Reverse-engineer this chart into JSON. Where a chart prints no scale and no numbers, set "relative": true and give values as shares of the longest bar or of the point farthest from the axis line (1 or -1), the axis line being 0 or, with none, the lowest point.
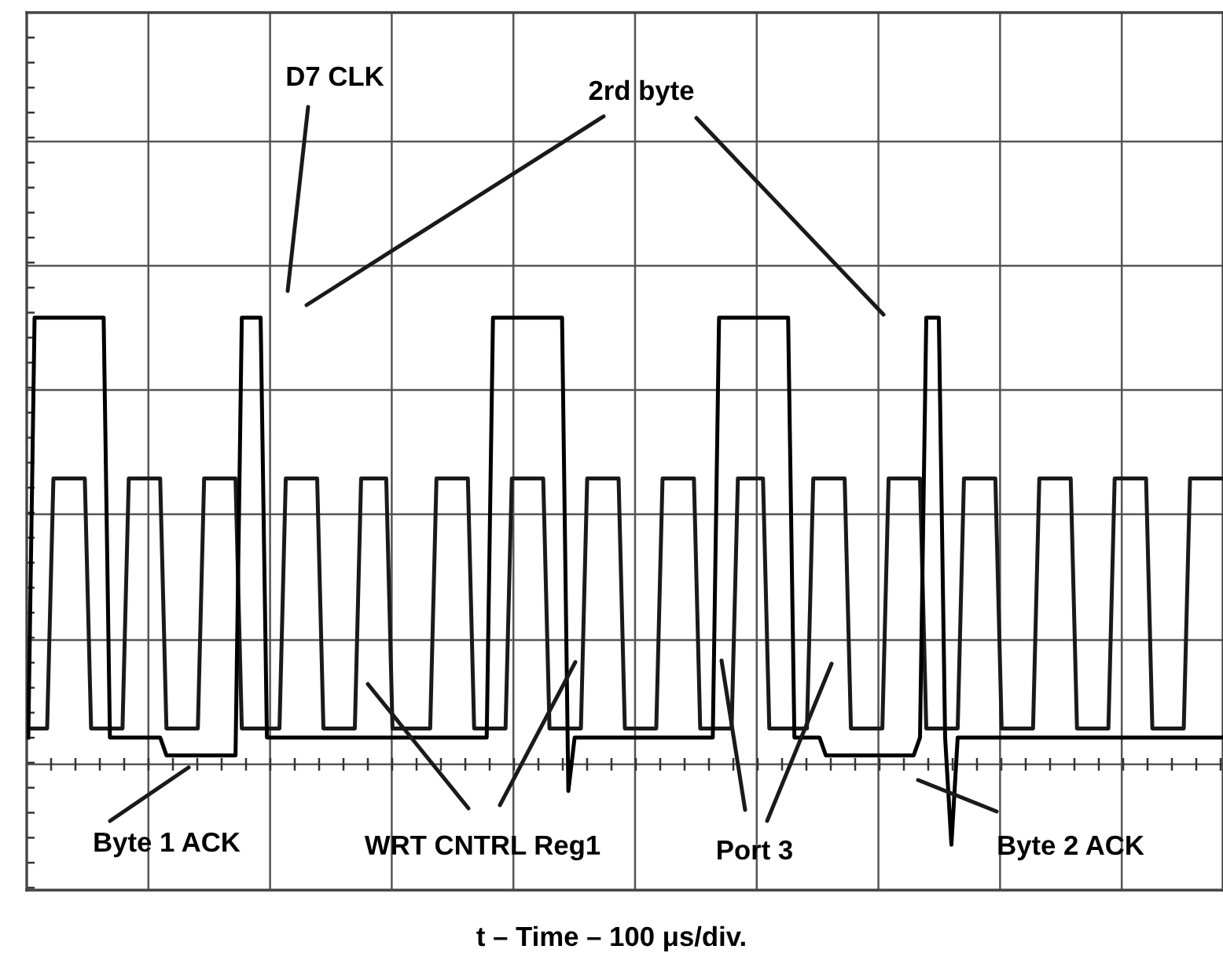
{
  "chart_data": {
    "type": "line",
    "relative": true,
    "grid": true,
    "marker": "none",
    "line_style": "solid",
    "tick_labels": false,
    "xlabel": "t – Time – 100 μs/div.",
    "annotations": [
      "D7 CLK",
      "2rd byte",
      "Byte 1 ACK",
      "WRT CNTRL Reg1",
      "Port 3",
      "Byte 2 ACK"
    ],
    "categories": [
      null,
      null,
      null,
      null,
      null,
      null,
      null,
      null,
      null,
      null,
      null,
      null,
      null,
      null,
      null,
      null,
      null,
      null,
      null,
      null,
      null,
      null,
      null,
      null,
      null,
      null,
      null,
      null,
      null,
      null,
      null,
      null,
      null,
      null,
      null,
      null,
      null,
      null,
      null,
      null,
      null,
      null,
      null,
      null,
      null,
      null,
      null,
      null,
      null,
      null,
      null,
      null,
      null,
      null,
      null,
      null,
      null,
      null,
      null,
      null,
      null,
      null,
      null,
      null,
      null,
      null,
      null,
      null,
      null,
      null,
      null,
      null,
      null,
      null,
      null,
      null,
      null,
      null,
      null,
      null,
      null,
      null,
      null,
      null,
      null,
      null,
      null,
      null,
      null,
      null,
      null,
      null,
      null,
      null,
      null,
      null,
      null,
      null,
      null,
      null,
      null,
      null,
      null,
      null,
      null,
      null,
      null,
      null,
      null,
      null,
      null,
      null,
      null,
      null,
      null,
      null,
      null,
      null,
      null,
      null,
      null,
      null,
      null,
      null,
      null,
      null,
      null,
      null,
      null,
      null,
      null,
      null,
      null,
      null,
      null,
      null,
      null,
      null,
      null,
      null,
      null,
      null,
      null,
      null,
      null,
      null,
      null,
      null,
      null,
      null,
      null,
      null,
      null,
      null,
      null,
      null,
      null,
      null,
      null,
      null,
      null,
      null,
      null,
      null,
      null,
      null,
      null,
      null,
      null,
      null,
      null,
      null,
      null,
      null,
      null,
      null,
      null,
      null,
      null,
      null,
      null,
      null,
      null,
      null,
      null,
      null,
      null,
      null,
      null,
      null,
      null
    ],
    "series": [
      {
        "color": "#1a1a1a",
        "values": [
          0.08,
          0.08,
          0.08,
          0.08,
          0.64,
          0.64,
          0.64,
          0.64,
          0.64,
          0.64,
          0.08,
          0.08,
          0.08,
          0.08,
          0.08,
          0.08,
          0.64,
          0.64,
          0.64,
          0.64,
          0.64,
          0.64,
          0.08,
          0.08,
          0.08,
          0.08,
          0.08,
          0.08,
          0.64,
          0.64,
          0.64,
          0.64,
          0.64,
          0.64,
          0.08,
          0.08,
          0.08,
          0.08,
          0.08,
          0.08,
          0.08,
          0.64,
          0.64,
          0.64,
          0.64,
          0.64,
          0.64,
          0.08,
          0.08,
          0.08,
          0.08,
          0.08,
          0.08,
          0.64,
          0.64,
          0.64,
          0.64,
          0.64,
          0.08,
          0.08,
          0.08,
          0.08,
          0.08,
          0.08,
          0.08,
          0.64,
          0.64,
          0.64,
          0.64,
          0.64,
          0.64,
          0.08,
          0.08,
          0.08,
          0.08,
          0.08,
          0.08,
          0.64,
          0.64,
          0.64,
          0.64,
          0.64,
          0.64,
          0.08,
          0.08,
          0.08,
          0.08,
          0.08,
          0.08,
          0.64,
          0.64,
          0.64,
          0.64,
          0.64,
          0.64,
          0.08,
          0.08,
          0.08,
          0.08,
          0.08,
          0.08,
          0.64,
          0.64,
          0.64,
          0.64,
          0.64,
          0.64,
          0.08,
          0.08,
          0.08,
          0.08,
          0.08,
          0.08,
          0.64,
          0.64,
          0.64,
          0.64,
          0.64,
          0.08,
          0.08,
          0.08,
          0.08,
          0.08,
          0.08,
          0.08,
          0.64,
          0.64,
          0.64,
          0.64,
          0.64,
          0.64,
          0.08,
          0.08,
          0.08,
          0.08,
          0.08,
          0.08,
          0.64,
          0.64,
          0.64,
          0.64,
          0.64,
          0.64,
          0.08,
          0.08,
          0.08,
          0.08,
          0.08,
          0.08,
          0.64,
          0.64,
          0.64,
          0.64,
          0.64,
          0.64,
          0.08,
          0.08,
          0.08,
          0.08,
          0.08,
          0.08,
          0.64,
          0.64,
          0.64,
          0.64,
          0.64,
          0.64,
          0.08,
          0.08,
          0.08,
          0.08,
          0.08,
          0.08,
          0.64,
          0.64,
          0.64,
          0.64,
          0.64,
          0.64,
          0.08,
          0.08,
          0.08,
          0.08,
          0.08,
          0.08,
          0.64,
          0.64,
          0.64,
          0.64,
          0.64,
          0.64
        ]
      },
      {
        "color": "#000000",
        "values": [
          0.06,
          1,
          1,
          1,
          1,
          1,
          1,
          1,
          1,
          1,
          1,
          1,
          1,
          0.06,
          0.06,
          0.06,
          0.06,
          0.06,
          0.06,
          0.06,
          0.06,
          0.06,
          0.02,
          0.02,
          0.02,
          0.02,
          0.02,
          0.02,
          0.02,
          0.02,
          0.02,
          0.02,
          0.02,
          0.02,
          1,
          1,
          1,
          1,
          0.06,
          0.06,
          0.06,
          0.06,
          0.06,
          0.06,
          0.06,
          0.06,
          0.06,
          0.06,
          0.06,
          0.06,
          0.06,
          0.06,
          0.06,
          0.06,
          0.06,
          0.06,
          0.06,
          0.06,
          0.06,
          0.06,
          0.06,
          0.06,
          0.06,
          0.06,
          0.06,
          0.06,
          0.06,
          0.06,
          0.06,
          0.06,
          0.06,
          0.06,
          0.06,
          0.06,
          1,
          1,
          1,
          1,
          1,
          1,
          1,
          1,
          1,
          1,
          1,
          1,
          -0.06,
          0.06,
          0.06,
          0.06,
          0.06,
          0.06,
          0.06,
          0.06,
          0.06,
          0.06,
          0.06,
          0.06,
          0.06,
          0.06,
          0.06,
          0.06,
          0.06,
          0.06,
          0.06,
          0.06,
          0.06,
          0.06,
          0.06,
          0.06,
          1,
          1,
          1,
          1,
          1,
          1,
          1,
          1,
          1,
          1,
          1,
          1,
          0.06,
          0.06,
          0.06,
          0.06,
          0.06,
          0.02,
          0.02,
          0.02,
          0.02,
          0.02,
          0.02,
          0.02,
          0.02,
          0.02,
          0.02,
          0.02,
          0.02,
          0.02,
          0.02,
          0.02,
          0.06,
          1,
          1,
          1,
          0.06,
          -0.18,
          0.06,
          0.06,
          0.06,
          0.06,
          0.06,
          0.06,
          0.06,
          0.06,
          0.06,
          0.06,
          0.06,
          0.06,
          0.06,
          0.06,
          0.06,
          0.06,
          0.06,
          0.06,
          0.06,
          0.06,
          0.06,
          0.06,
          0.06,
          0.06,
          0.06,
          0.06,
          0.06,
          0.06,
          0.06,
          0.06,
          0.06,
          0.06,
          0.06,
          0.06,
          0.06,
          0.06,
          0.06,
          0.06,
          0.06,
          0.06,
          0.06,
          0.06,
          0.06
        ]
      }
    ]
  }
}
